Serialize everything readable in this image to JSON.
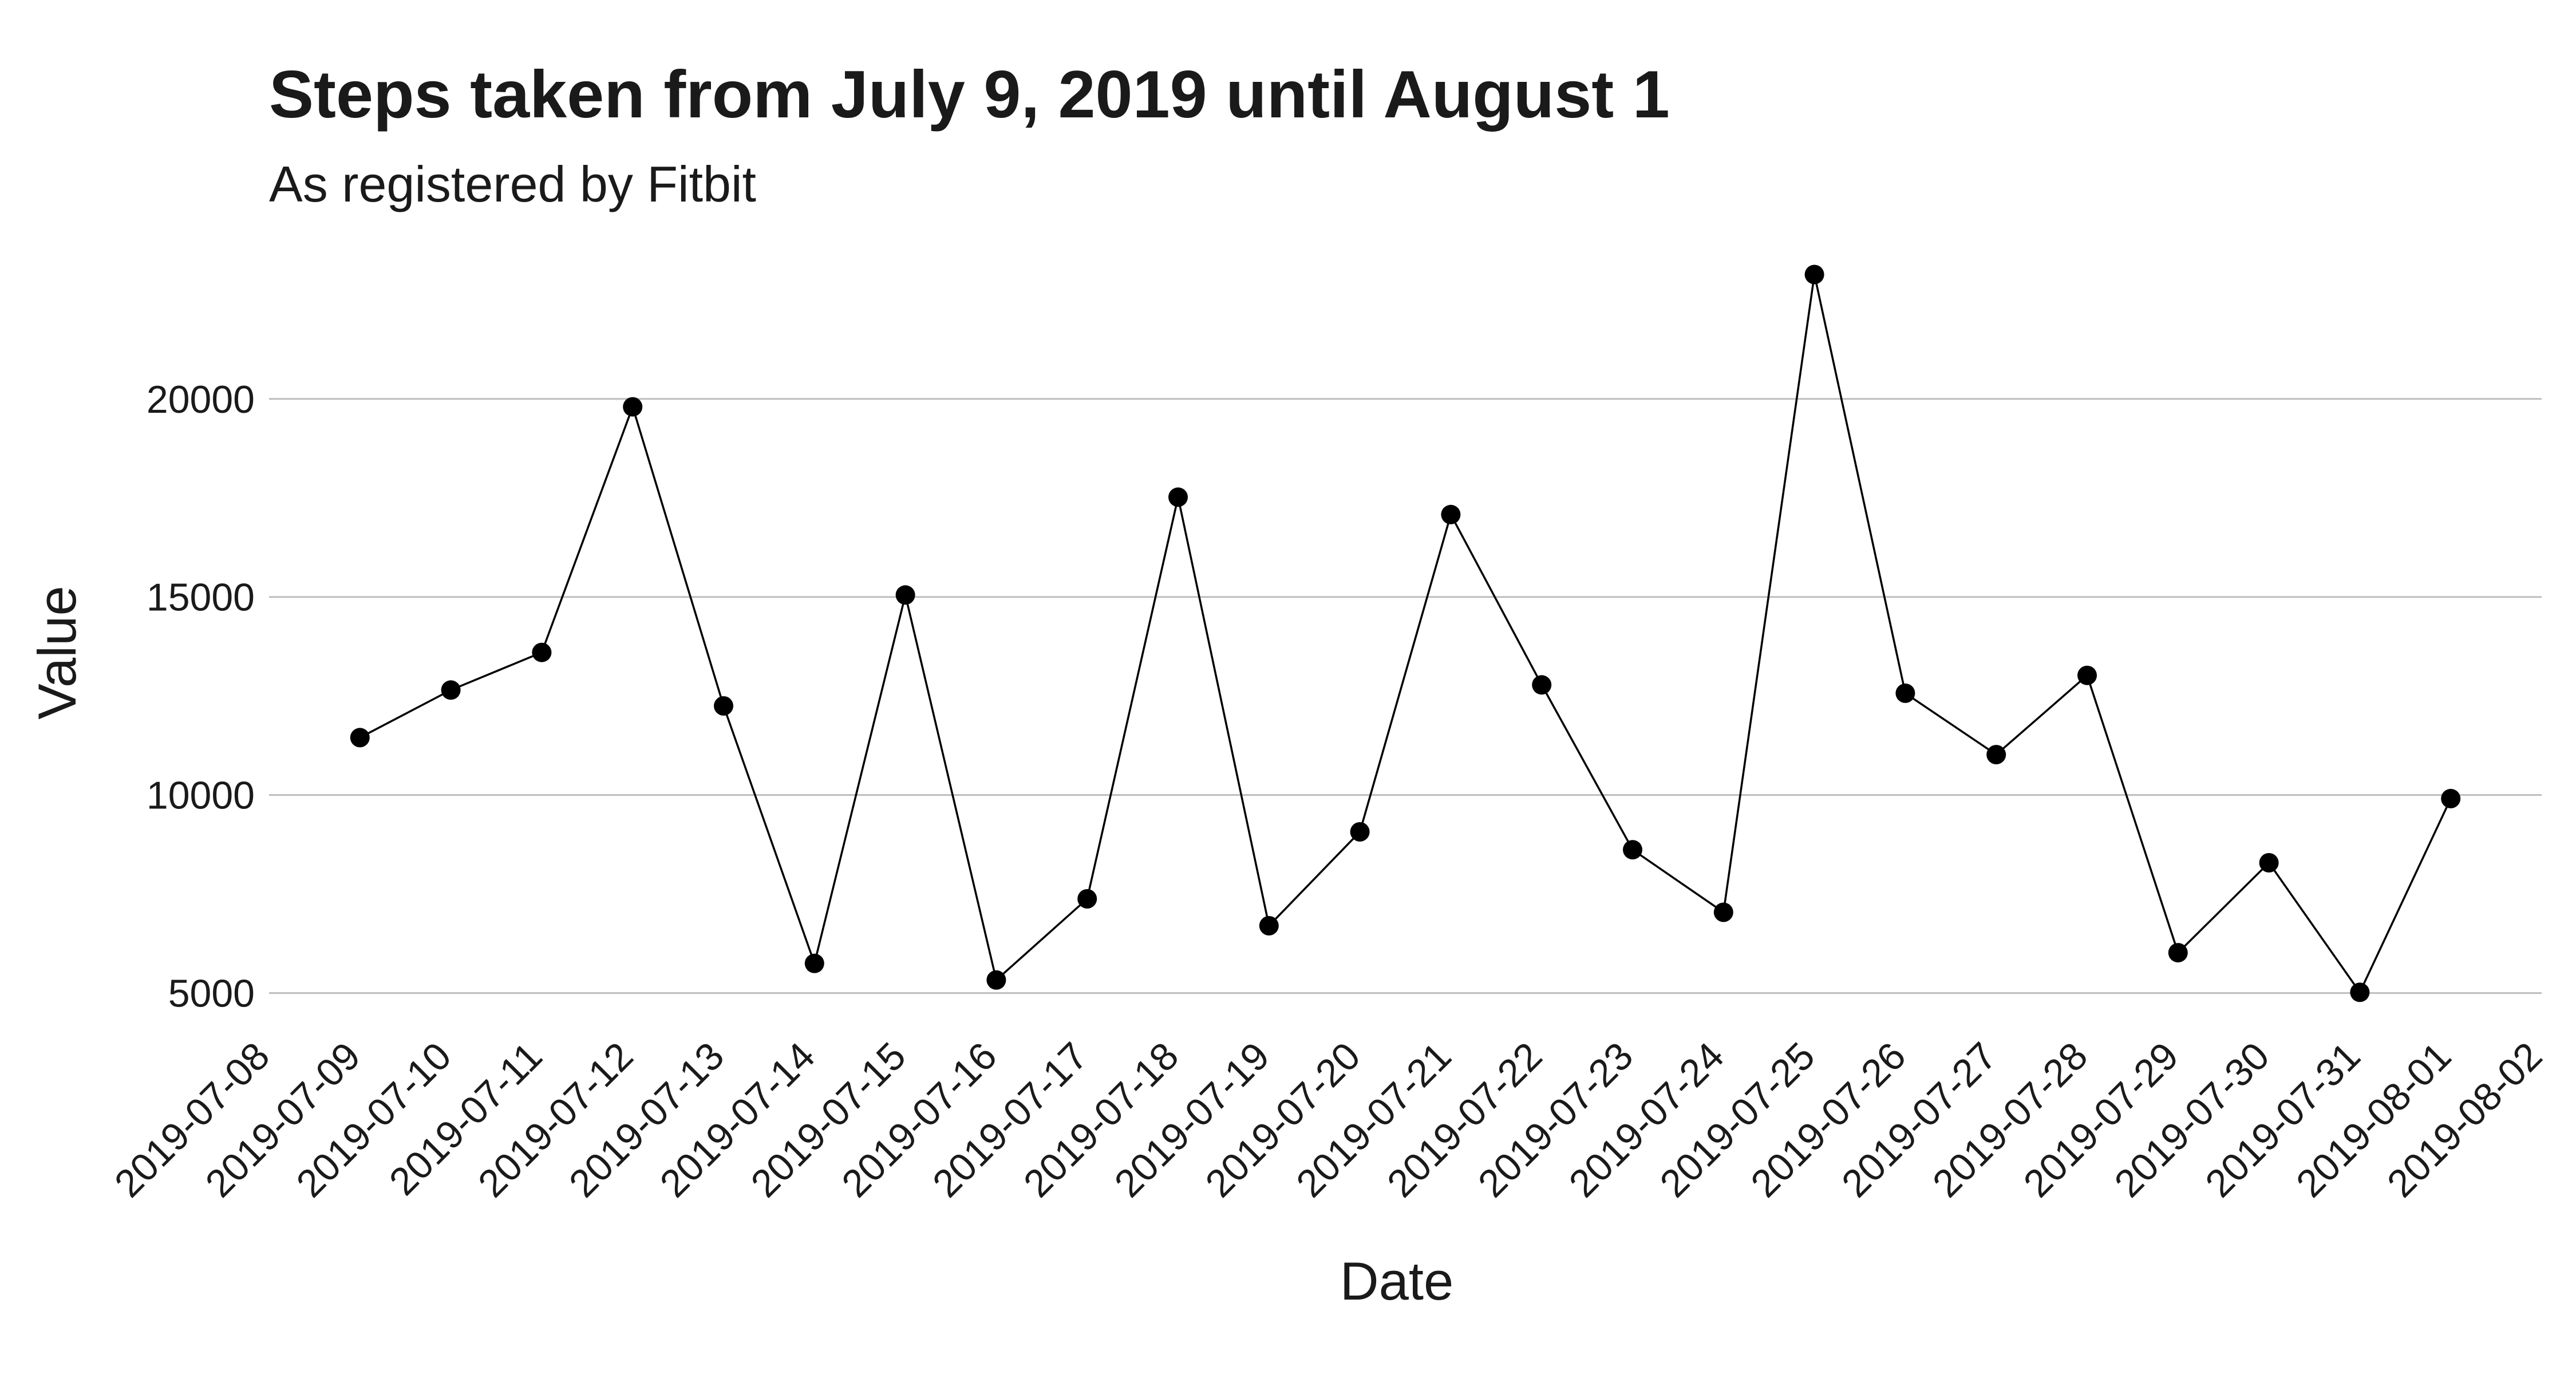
{
  "chart_data": {
    "type": "line",
    "title": "Steps taken from July 9, 2019 until August 1",
    "subtitle": "As registered by Fitbit",
    "xlabel": "Date",
    "ylabel": "Value",
    "x_ticks": [
      "2019-07-08",
      "2019-07-09",
      "2019-07-10",
      "2019-07-11",
      "2019-07-12",
      "2019-07-13",
      "2019-07-14",
      "2019-07-15",
      "2019-07-16",
      "2019-07-17",
      "2019-07-18",
      "2019-07-19",
      "2019-07-20",
      "2019-07-21",
      "2019-07-22",
      "2019-07-23",
      "2019-07-24",
      "2019-07-25",
      "2019-07-26",
      "2019-07-27",
      "2019-07-28",
      "2019-07-29",
      "2019-07-30",
      "2019-07-31",
      "2019-08-01",
      "2019-08-02"
    ],
    "y_ticks": [
      5000,
      10000,
      15000,
      20000
    ],
    "y_tick_labels": [
      "5000",
      "10000",
      "15000",
      "20000"
    ],
    "xlim": [
      "2019-07-08",
      "2019-08-02"
    ],
    "ylim": [
      4200,
      24000
    ],
    "grid": "horizontal major",
    "legend": "none",
    "series": [
      {
        "x": [
          "2019-07-09",
          "2019-07-10",
          "2019-07-11",
          "2019-07-12",
          "2019-07-13",
          "2019-07-14",
          "2019-07-15",
          "2019-07-16",
          "2019-07-17",
          "2019-07-18",
          "2019-07-19",
          "2019-07-20",
          "2019-07-21",
          "2019-07-22",
          "2019-07-23",
          "2019-07-24",
          "2019-07-25",
          "2019-07-26",
          "2019-07-27",
          "2019-07-28",
          "2019-07-29",
          "2019-07-30",
          "2019-07-31",
          "2019-08-01"
        ],
        "y": [
          11450,
          12650,
          13600,
          19800,
          12250,
          5750,
          15050,
          5330,
          7380,
          17520,
          6700,
          9070,
          17080,
          12780,
          8620,
          7040,
          23140,
          12570,
          11020,
          13020,
          6020,
          8290,
          5020,
          9910
        ],
        "color": "#000000"
      }
    ]
  }
}
